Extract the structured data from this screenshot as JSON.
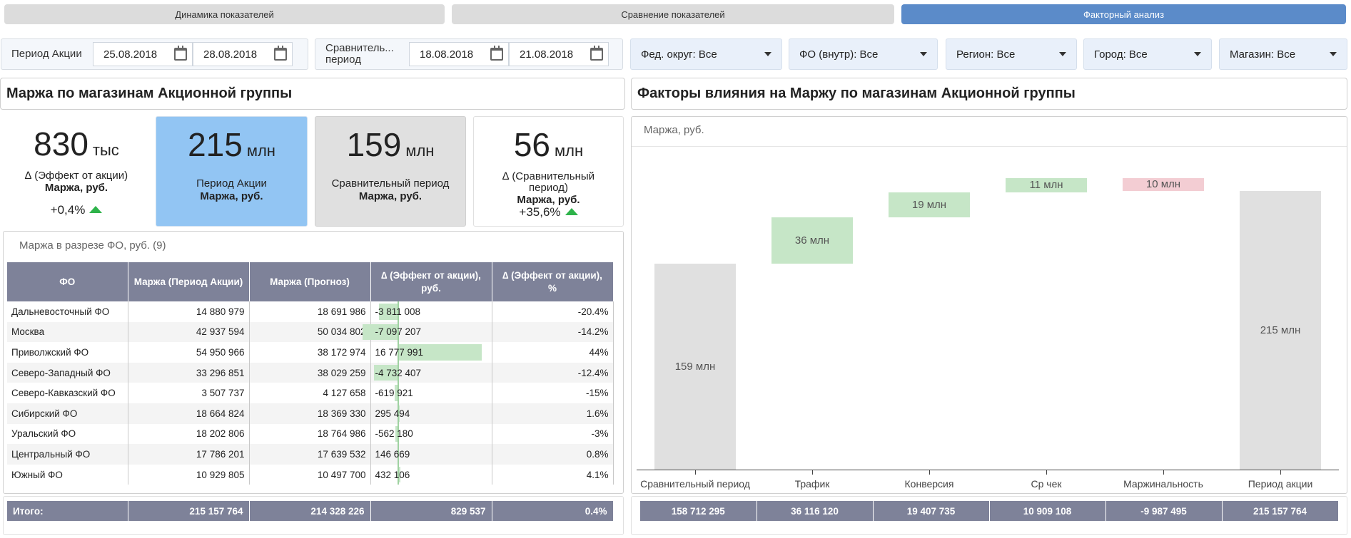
{
  "tabs": [
    {
      "label": "Динамика показателей"
    },
    {
      "label": "Сравнение показателей"
    },
    {
      "label": "Факторный анализ"
    }
  ],
  "filters": {
    "promo_period_label": "Период Акции",
    "promo_from": "25.08.2018",
    "promo_to": "28.08.2018",
    "compare_period_label": "Сравнитель... период",
    "compare_from": "18.08.2018",
    "compare_to": "21.08.2018",
    "dropdowns": [
      {
        "label": "Фед. округ: Все"
      },
      {
        "label": "ФО (внутр): Все"
      },
      {
        "label": "Регион: Все"
      },
      {
        "label": "Город: Все"
      },
      {
        "label": "Магазин: Все"
      }
    ]
  },
  "left_title": "Маржа по магазинам Акционной группы",
  "right_title": "Факторы влияния на Маржу по магазинам Акционной группы",
  "kpis": [
    {
      "value": "830",
      "unit": "тыс",
      "sub": "∆ (Эффект от акции)",
      "subb": "Маржа, руб.",
      "pct": "+0,4%",
      "color": "#ffffff"
    },
    {
      "value": "215",
      "unit": "млн",
      "sub": "Период Акции",
      "subb": "Маржа, руб.",
      "pct": "",
      "color": "#92c5f3"
    },
    {
      "value": "159",
      "unit": "млн",
      "sub": "Сравнительный период",
      "subb": "Маржа, руб.",
      "pct": "",
      "color": "#e0e0e0"
    },
    {
      "value": "56",
      "unit": "млн",
      "sub": "∆ (Сравнительный период)",
      "subb": "Маржа, руб.",
      "pct": "+35,6%",
      "color": "#ffffff"
    }
  ],
  "table": {
    "caption": "Маржа в разрезе ФО, руб. (9)",
    "columns": [
      "ФО",
      "Маржа (Период Акции)",
      "Маржа (Прогноз)",
      "∆ (Эффект от акции), руб.",
      "∆ (Эффект от акции), %"
    ],
    "rows": [
      {
        "fo": "Дальневосточный ФО",
        "promo": "14 880 979",
        "forecast": "18 691 986",
        "delta": "-3 811 008",
        "delta_value": -3811008,
        "pct": "-20.4%"
      },
      {
        "fo": "Москва",
        "promo": "42 937 594",
        "forecast": "50 034 802",
        "delta": "-7 097 207",
        "delta_value": -7097207,
        "pct": "-14.2%"
      },
      {
        "fo": "Приволжский ФО",
        "promo": "54 950 966",
        "forecast": "38 172 974",
        "delta": "16 777 991",
        "delta_value": 16777991,
        "pct": "44%"
      },
      {
        "fo": "Северо-Западный ФО",
        "promo": "33 296 851",
        "forecast": "38 029 259",
        "delta": "-4 732 407",
        "delta_value": -4732407,
        "pct": "-12.4%"
      },
      {
        "fo": "Северо-Кавказский ФО",
        "promo": "3 507 737",
        "forecast": "4 127 658",
        "delta": "-619 921",
        "delta_value": -619921,
        "pct": "-15%"
      },
      {
        "fo": "Сибирский ФО",
        "promo": "18 664 824",
        "forecast": "18 369 330",
        "delta": "295 494",
        "delta_value": 295494,
        "pct": "1.6%"
      },
      {
        "fo": "Уральский ФО",
        "promo": "18 202 806",
        "forecast": "18 764 986",
        "delta": "-562 180",
        "delta_value": -562180,
        "pct": "-3%"
      },
      {
        "fo": "Центральный ФО",
        "promo": "17 786 201",
        "forecast": "17 639 532",
        "delta": "146 669",
        "delta_value": 146669,
        "pct": "0.8%"
      },
      {
        "fo": "Южный ФО",
        "promo": "10 929 805",
        "forecast": "10 497 700",
        "delta": "432 106",
        "delta_value": 432106,
        "pct": "4.1%"
      }
    ],
    "total": {
      "label": "Итого:",
      "promo": "215 157 764",
      "forecast": "214 328 226",
      "delta": "829 537",
      "pct": "0.4%"
    }
  },
  "chart_data": {
    "type": "bar",
    "subtype": "waterfall",
    "title": "Маржа, руб.",
    "categories": [
      "Сравнительный период",
      "Трафик",
      "Конверсия",
      "Ср чек",
      "Маржинальность",
      "Период акции"
    ],
    "values": [
      158712295,
      36116120,
      19407735,
      10909108,
      -9987495,
      215157764
    ],
    "labels": [
      "159 млн",
      "36 млн",
      "19 млн",
      "11 млн",
      "10 млн",
      "215 млн"
    ],
    "totals_row": [
      "158 712 295",
      "36 116 120",
      "19 407 735",
      "10 909 108",
      "-9 987 495",
      "215 157 764"
    ],
    "colors": {
      "total": "#e0e0e0",
      "increase": "#c6e6c7",
      "decrease": "#f3cdd3"
    },
    "ylim": [
      0,
      225000000
    ]
  }
}
